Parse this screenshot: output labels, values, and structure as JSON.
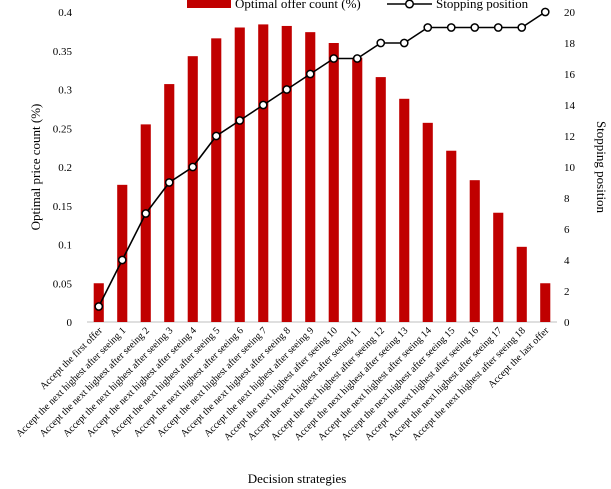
{
  "chart_data": {
    "type": "bar",
    "xlabel": "Decision strategies",
    "ylabel": "Optimal price count (%)",
    "y2label": "Stopping position",
    "ylim": [
      0,
      0.4
    ],
    "y2lim": [
      0,
      20
    ],
    "yticks": [
      "0",
      "0.05",
      "0.1",
      "0.15",
      "0.2",
      "0.25",
      "0.3",
      "0.35",
      "0.4"
    ],
    "y2ticks": [
      "0",
      "2",
      "4",
      "6",
      "8",
      "10",
      "12",
      "14",
      "16",
      "18",
      "20"
    ],
    "legend_position": "top",
    "grid": false,
    "categories": [
      "Accept the first offer",
      "Accept the next highest after seeing 1",
      "Accept the next highest after seeing 2",
      "Accept the next highest after seeing 3",
      "Accept the next highest after seeing 4",
      "Accept the next highest after seeing 5",
      "Accept the next highest after seeing 6",
      "Accept the next highest after seeing 7",
      "Accept the next highest after seeing 8",
      "Accept the next highest after seeing 9",
      "Accept the next highest after seeing 10",
      "Accept the next highest after seeing 11",
      "Accept the next highest after seeing 12",
      "Accept the next highest after seeing 13",
      "Accept the next highest after seeing 14",
      "Accept the next highest after seeing 15",
      "Accept the next highest after seeing 16",
      "Accept the next highest after seeing 17",
      "Accept the next highest after seeing 18",
      "Accept the last offer"
    ],
    "series": [
      {
        "name": "Optimal offer count (%)",
        "type": "bar",
        "axis": "left",
        "color": "#c00000",
        "values": [
          0.05,
          0.177,
          0.255,
          0.307,
          0.343,
          0.366,
          0.38,
          0.384,
          0.382,
          0.374,
          0.36,
          0.341,
          0.316,
          0.288,
          0.257,
          0.221,
          0.183,
          0.141,
          0.097,
          0.05
        ]
      },
      {
        "name": "Stopping position",
        "type": "line",
        "axis": "right",
        "color": "#000000",
        "marker": "open-circle",
        "values": [
          1,
          4,
          7,
          9,
          10,
          12,
          13,
          14,
          15,
          16,
          17,
          17,
          18,
          18,
          19,
          19,
          19,
          19,
          19,
          20
        ]
      }
    ]
  }
}
